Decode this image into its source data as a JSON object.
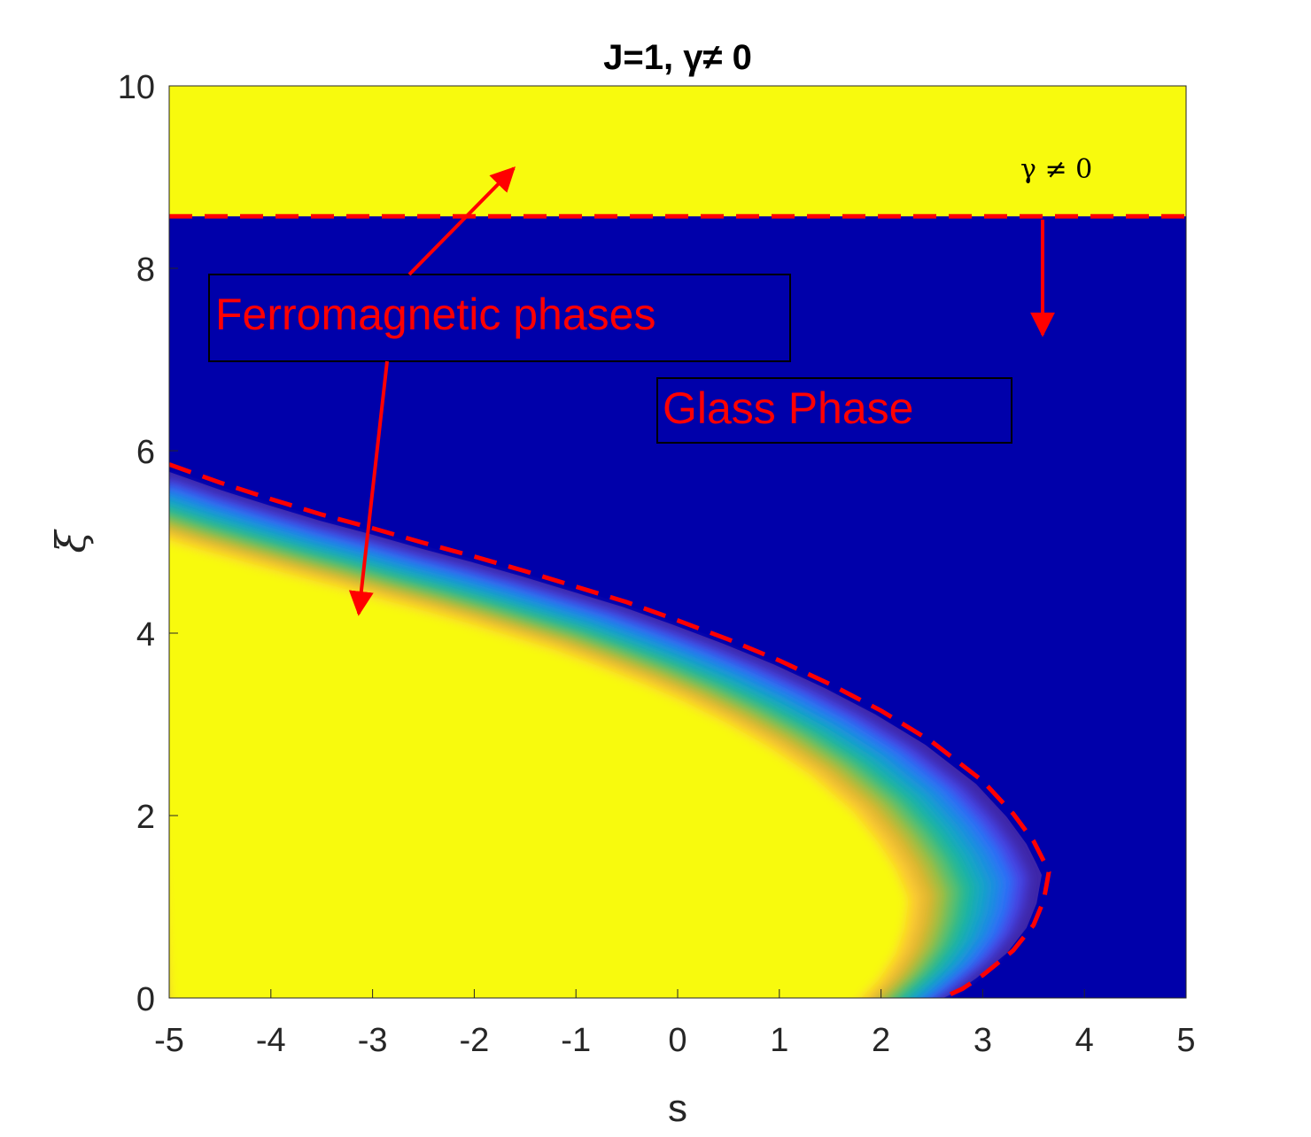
{
  "chart_data": {
    "type": "heatmap",
    "title": "J=1, γ≠ 0",
    "xlabel": "s",
    "ylabel": "ξ",
    "xlim": [
      -5,
      5
    ],
    "ylim": [
      0,
      10
    ],
    "xticks": [
      "-5",
      "-4",
      "-3",
      "-2",
      "-1",
      "0",
      "1",
      "2",
      "3",
      "4",
      "5"
    ],
    "yticks": [
      "0",
      "2",
      "4",
      "6",
      "8",
      "10"
    ],
    "grid": false,
    "legend": "none",
    "colormap": "parula",
    "colors": {
      "ferromagnetic": "#f8fa0d",
      "glass": "#0000aa",
      "boundary": "#ff0000",
      "annotation": "#ff0000"
    },
    "regions": [
      {
        "name": "Ferromagnetic phases",
        "where": "xi > 8.57 (gamma ≠ 0)"
      },
      {
        "name": "Ferromagnetic phases",
        "where": "inside parabolic boundary, lower left"
      },
      {
        "name": "Glass Phase",
        "where": "between boundaries"
      }
    ],
    "boundary_upper": {
      "xi": 8.57
    },
    "boundary_lower_curve": {
      "s": [
        -5.0,
        -4.5,
        -4.0,
        -3.5,
        -3.0,
        -2.5,
        -2.0,
        -1.5,
        -1.0,
        -0.5,
        0.0,
        0.5,
        1.0,
        1.5,
        2.0,
        2.5,
        3.0,
        3.3,
        3.5,
        3.6,
        3.65,
        3.6,
        3.5,
        3.3,
        3.0,
        2.8,
        2.6
      ],
      "xi": [
        5.85,
        5.65,
        5.47,
        5.3,
        5.15,
        4.99,
        4.84,
        4.68,
        4.51,
        4.34,
        4.14,
        3.93,
        3.7,
        3.44,
        3.15,
        2.81,
        2.38,
        2.02,
        1.72,
        1.5,
        1.38,
        1.07,
        0.8,
        0.52,
        0.25,
        0.1,
        0.0
      ]
    },
    "annotations": [
      {
        "text": "Ferromagnetic phases",
        "arrows_to": [
          [
            -1.6,
            9.15
          ],
          [
            -3.1,
            4.2
          ]
        ]
      },
      {
        "text": "Glass Phase"
      },
      {
        "text": "γ ≠ 0",
        "arrow_to": [
          3.6,
          7.3
        ]
      }
    ]
  }
}
